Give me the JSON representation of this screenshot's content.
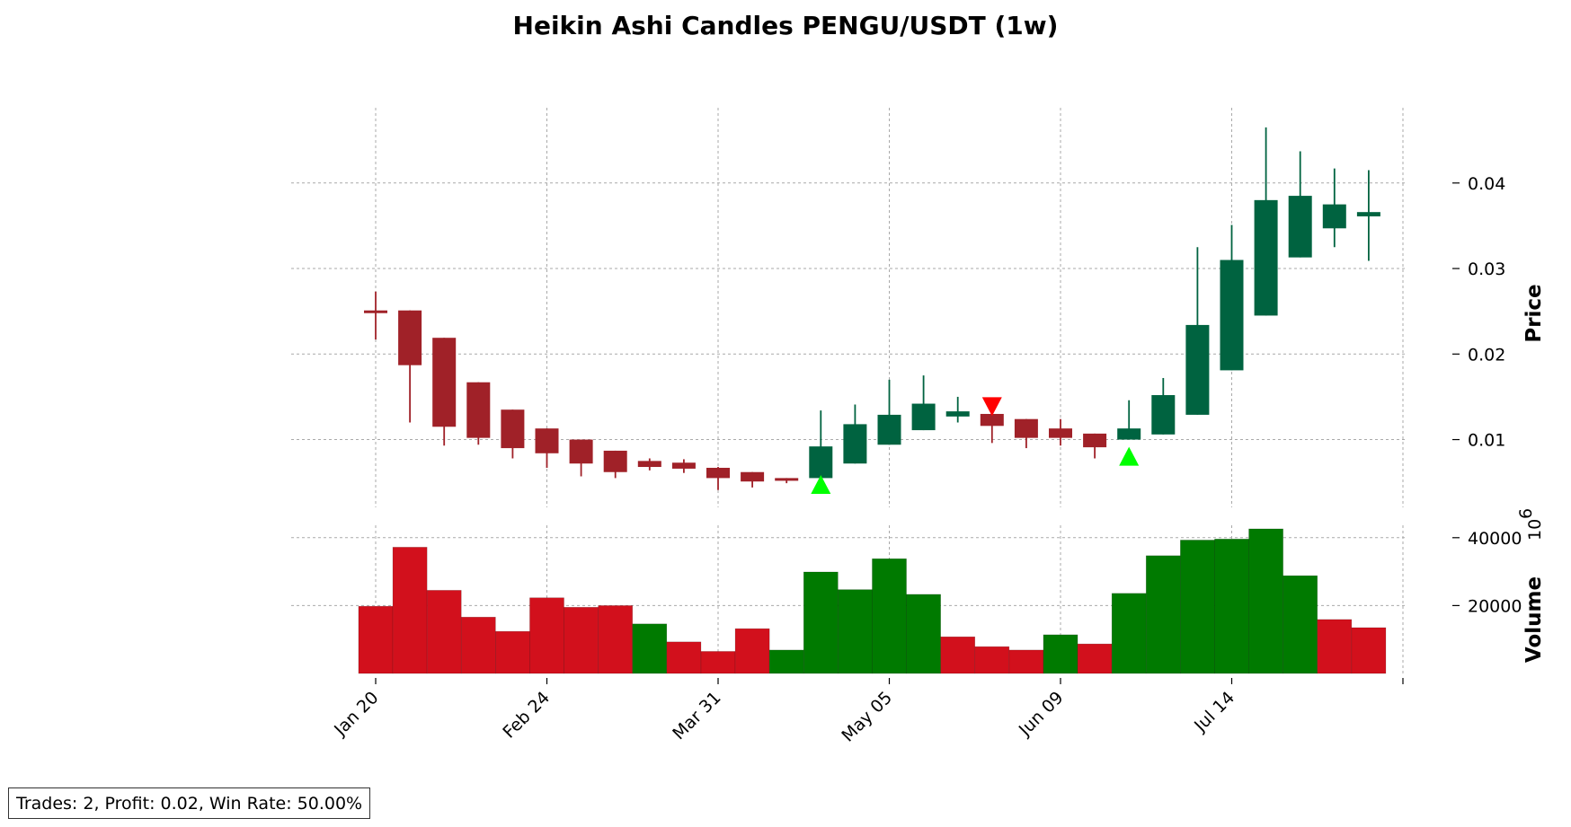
{
  "chart_data": {
    "type": "candlestick",
    "title": "Heikin Ashi Candles PENGU/USDT (1w)",
    "price_label": "Price",
    "volume_label": "Volume",
    "volume_exponent_base": "10",
    "volume_exponent_power": "6",
    "x_tick_labels": [
      "Jan 20",
      "Feb 24",
      "Mar 31",
      "May 05",
      "Jun 09",
      "Jul 14"
    ],
    "x_tick_indices": [
      0,
      5,
      10,
      15,
      20,
      25
    ],
    "price_ticks": [
      0.01,
      0.02,
      0.03,
      0.04
    ],
    "price_tick_labels": [
      "0.01",
      "0.02",
      "0.03",
      "0.04"
    ],
    "price_ylim": [
      0,
      0.049
    ],
    "volume_ticks": [
      20000,
      40000
    ],
    "volume_tick_labels": [
      "20000",
      "40000"
    ],
    "volume_ylim": [
      0,
      46000
    ],
    "colors": {
      "up_candle": "#006340",
      "down_candle": "#a02128",
      "up_volume": "#007a00",
      "down_volume": "#d2101c",
      "buy_marker": "#00ff00",
      "sell_marker": "#ff0000"
    },
    "candles": [
      {
        "open": 0.0251,
        "close": 0.0248,
        "high": 0.0273,
        "low": 0.0217
      },
      {
        "open": 0.0251,
        "close": 0.0187,
        "high": 0.0251,
        "low": 0.012
      },
      {
        "open": 0.0219,
        "close": 0.0115,
        "high": 0.0219,
        "low": 0.0093
      },
      {
        "open": 0.0167,
        "close": 0.0102,
        "high": 0.0167,
        "low": 0.0094
      },
      {
        "open": 0.0135,
        "close": 0.009,
        "high": 0.0135,
        "low": 0.0078
      },
      {
        "open": 0.0113,
        "close": 0.0084,
        "high": 0.0113,
        "low": 0.0067
      },
      {
        "open": 0.01,
        "close": 0.0072,
        "high": 0.01,
        "low": 0.0057
      },
      {
        "open": 0.0087,
        "close": 0.0062,
        "high": 0.0087,
        "low": 0.0055
      },
      {
        "open": 0.0075,
        "close": 0.0068,
        "high": 0.0078,
        "low": 0.0064
      },
      {
        "open": 0.0073,
        "close": 0.0066,
        "high": 0.0077,
        "low": 0.0061
      },
      {
        "open": 0.0067,
        "close": 0.0055,
        "high": 0.0068,
        "low": 0.0041
      },
      {
        "open": 0.0062,
        "close": 0.0051,
        "high": 0.0062,
        "low": 0.0044
      },
      {
        "open": 0.0055,
        "close": 0.0052,
        "high": 0.0055,
        "low": 0.0049
      },
      {
        "open": 0.0055,
        "close": 0.0092,
        "high": 0.0134,
        "low": 0.0055
      },
      {
        "open": 0.0072,
        "close": 0.0118,
        "high": 0.0141,
        "low": 0.0072
      },
      {
        "open": 0.0094,
        "close": 0.0129,
        "high": 0.017,
        "low": 0.0094
      },
      {
        "open": 0.0111,
        "close": 0.0142,
        "high": 0.0175,
        "low": 0.0111
      },
      {
        "open": 0.0127,
        "close": 0.0133,
        "high": 0.015,
        "low": 0.012
      },
      {
        "open": 0.013,
        "close": 0.0116,
        "high": 0.0145,
        "low": 0.0096
      },
      {
        "open": 0.0124,
        "close": 0.0102,
        "high": 0.0124,
        "low": 0.009
      },
      {
        "open": 0.0113,
        "close": 0.0102,
        "high": 0.0124,
        "low": 0.0093
      },
      {
        "open": 0.0107,
        "close": 0.0091,
        "high": 0.0107,
        "low": 0.0078
      },
      {
        "open": 0.01,
        "close": 0.0113,
        "high": 0.0146,
        "low": 0.01
      },
      {
        "open": 0.0106,
        "close": 0.0152,
        "high": 0.0172,
        "low": 0.0106
      },
      {
        "open": 0.0129,
        "close": 0.0234,
        "high": 0.0325,
        "low": 0.0129
      },
      {
        "open": 0.0181,
        "close": 0.031,
        "high": 0.0351,
        "low": 0.0181
      },
      {
        "open": 0.0245,
        "close": 0.038,
        "high": 0.0465,
        "low": 0.0245
      },
      {
        "open": 0.0313,
        "close": 0.0385,
        "high": 0.0437,
        "low": 0.0313
      },
      {
        "open": 0.0347,
        "close": 0.0375,
        "high": 0.0417,
        "low": 0.0325
      },
      {
        "open": 0.0361,
        "close": 0.0366,
        "high": 0.0415,
        "low": 0.0309
      }
    ],
    "volumes": [
      {
        "value": 19800,
        "direction": "down"
      },
      {
        "value": 37200,
        "direction": "down"
      },
      {
        "value": 24500,
        "direction": "down"
      },
      {
        "value": 16600,
        "direction": "down"
      },
      {
        "value": 12400,
        "direction": "down"
      },
      {
        "value": 22300,
        "direction": "down"
      },
      {
        "value": 19500,
        "direction": "down"
      },
      {
        "value": 20000,
        "direction": "down"
      },
      {
        "value": 14600,
        "direction": "up"
      },
      {
        "value": 9300,
        "direction": "down"
      },
      {
        "value": 6500,
        "direction": "down"
      },
      {
        "value": 13200,
        "direction": "down"
      },
      {
        "value": 6900,
        "direction": "up"
      },
      {
        "value": 29900,
        "direction": "up"
      },
      {
        "value": 24700,
        "direction": "up"
      },
      {
        "value": 33800,
        "direction": "up"
      },
      {
        "value": 23300,
        "direction": "up"
      },
      {
        "value": 10800,
        "direction": "down"
      },
      {
        "value": 7900,
        "direction": "down"
      },
      {
        "value": 6900,
        "direction": "down"
      },
      {
        "value": 11400,
        "direction": "up"
      },
      {
        "value": 8700,
        "direction": "down"
      },
      {
        "value": 23600,
        "direction": "up"
      },
      {
        "value": 34700,
        "direction": "up"
      },
      {
        "value": 39300,
        "direction": "up"
      },
      {
        "value": 39600,
        "direction": "up"
      },
      {
        "value": 42600,
        "direction": "up"
      },
      {
        "value": 28800,
        "direction": "up"
      },
      {
        "value": 15900,
        "direction": "down"
      },
      {
        "value": 13500,
        "direction": "down"
      }
    ],
    "buy_signals": [
      {
        "index": 13,
        "price": 0.0047
      },
      {
        "index": 22,
        "price": 0.008
      }
    ],
    "sell_signals": [
      {
        "index": 18,
        "price": 0.0139
      }
    ]
  },
  "stats_text": "Trades: 2, Profit: 0.02, Win Rate: 50.00%"
}
